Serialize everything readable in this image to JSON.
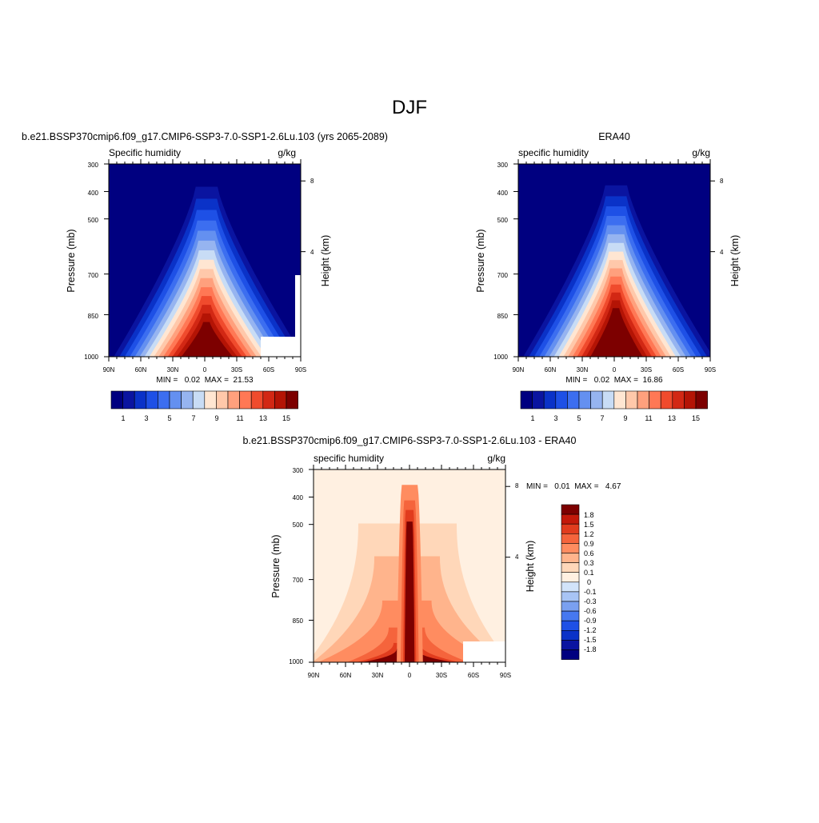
{
  "page_title": "DJF",
  "colors": {
    "seq": [
      "#000080",
      "#0a14a0",
      "#0a32c8",
      "#1e50e6",
      "#3c6ef0",
      "#6490f0",
      "#96b4f0",
      "#c8dcf5",
      "#ffe6d2",
      "#ffc8aa",
      "#ffa07d",
      "#ff7855",
      "#f04b2d",
      "#d22814",
      "#b41405",
      "#7d0000"
    ],
    "div": [
      "#000080",
      "#0a14a0",
      "#0a32c8",
      "#1e50e6",
      "#4678f0",
      "#7aa0f0",
      "#a8c4f5",
      "#d2e4fa",
      "#fff0e1",
      "#ffd7b9",
      "#ffb48c",
      "#ff8c60",
      "#f5643c",
      "#e13c1e",
      "#c3190a",
      "#7d0000"
    ]
  },
  "chart_data": [
    {
      "type": "heatmap",
      "title": "b.e21.BSSP370cmip6.f09_g17.CMIP6-SSP3-7.0-SSP1-2.6Lu.103 (yrs 2065-2089)",
      "left_label": "Specific humidity",
      "right_label": "g/kg",
      "ylabel": "Pressure (mb)",
      "y2label": "Height (km)",
      "x_ticks": [
        "90N",
        "60N",
        "30N",
        "0",
        "30S",
        "60S",
        "90S"
      ],
      "y_ticks": [
        "300",
        "400",
        "500",
        "700",
        "850",
        "1000"
      ],
      "y2_ticks": [
        "8",
        "4"
      ],
      "min_max": "MIN =   0.02  MAX =  21.53",
      "min": 0.02,
      "max": 21.53,
      "levels": [
        1,
        2,
        3,
        4,
        5,
        6,
        7,
        8,
        9,
        10,
        11,
        12,
        13,
        14,
        15
      ],
      "colorbar_labels": [
        "1",
        "3",
        "5",
        "7",
        "9",
        "11",
        "13",
        "15"
      ]
    },
    {
      "type": "heatmap",
      "title": "ERA40",
      "left_label": "specific humidity",
      "right_label": "g/kg",
      "ylabel": "Pressure (mb)",
      "y2label": "Height (km)",
      "x_ticks": [
        "90N",
        "60N",
        "30N",
        "0",
        "30S",
        "60S",
        "90S"
      ],
      "y_ticks": [
        "300",
        "400",
        "500",
        "700",
        "850",
        "1000"
      ],
      "y2_ticks": [
        "8",
        "4"
      ],
      "min_max": "MIN =   0.02  MAX =  16.86",
      "min": 0.02,
      "max": 16.86,
      "levels": [
        1,
        2,
        3,
        4,
        5,
        6,
        7,
        8,
        9,
        10,
        11,
        12,
        13,
        14,
        15
      ],
      "colorbar_labels": [
        "1",
        "3",
        "5",
        "7",
        "9",
        "11",
        "13",
        "15"
      ]
    },
    {
      "type": "heatmap",
      "title": "b.e21.BSSP370cmip6.f09_g17.CMIP6-SSP3-7.0-SSP1-2.6Lu.103 - ERA40",
      "left_label": "specific humidity",
      "right_label": "g/kg",
      "ylabel": "Pressure (mb)",
      "y2label": "Height (km)",
      "x_ticks": [
        "90N",
        "60N",
        "30N",
        "0",
        "30S",
        "60S",
        "90S"
      ],
      "y_ticks": [
        "300",
        "400",
        "500",
        "700",
        "850",
        "1000"
      ],
      "y2_ticks": [
        "8",
        "4"
      ],
      "min_max": "MIN =   0.01  MAX =   4.67",
      "min": 0.01,
      "max": 4.67,
      "levels": [
        -1.8,
        -1.5,
        -1.2,
        -0.9,
        -0.6,
        -0.3,
        -0.1,
        0,
        0.1,
        0.3,
        0.6,
        0.9,
        1.2,
        1.5,
        1.8
      ],
      "colorbar_labels": [
        "1.8",
        "1.5",
        "1.2",
        "0.9",
        "0.6",
        "0.3",
        "0.1",
        "0",
        "-0.1",
        "-0.3",
        "-0.6",
        "-0.9",
        "-1.2",
        "-1.5",
        "-1.8"
      ]
    }
  ]
}
